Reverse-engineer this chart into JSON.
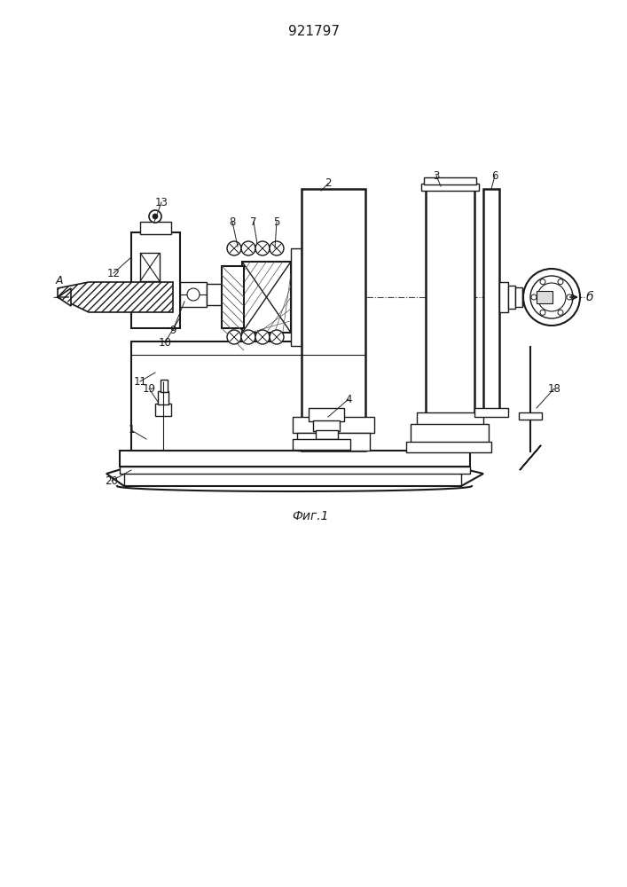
{
  "title": "921797",
  "caption": "Фиг.1",
  "bg_color": "#ffffff",
  "line_color": "#1a1a1a",
  "figsize": [
    7.07,
    10.0
  ],
  "dpi": 100
}
